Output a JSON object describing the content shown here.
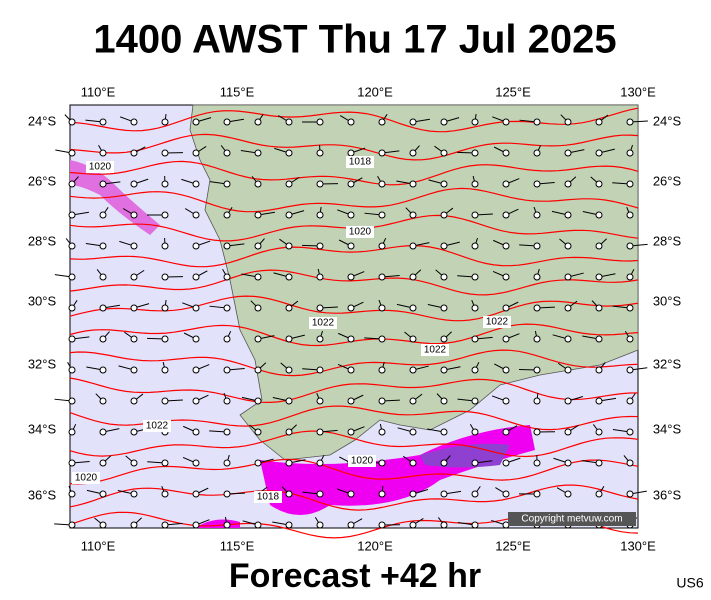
{
  "header": {
    "title": "1400 AWST Thu 17 Jul 2025"
  },
  "footer": {
    "forecast": "Forecast +42 hr",
    "code": "US6"
  },
  "copyright": "Copyright metvuw.com",
  "lon_labels": [
    "110°E",
    "115°E",
    "120°E",
    "125°E",
    "130°E"
  ],
  "lat_labels": [
    "24°S",
    "26°S",
    "28°S",
    "30°S",
    "32°S",
    "34°S",
    "36°S"
  ],
  "isobar_labels": [
    "1020",
    "1018",
    "1020",
    "1022",
    "1022",
    "1022",
    "1022",
    "1020",
    "1020",
    "1018"
  ]
}
